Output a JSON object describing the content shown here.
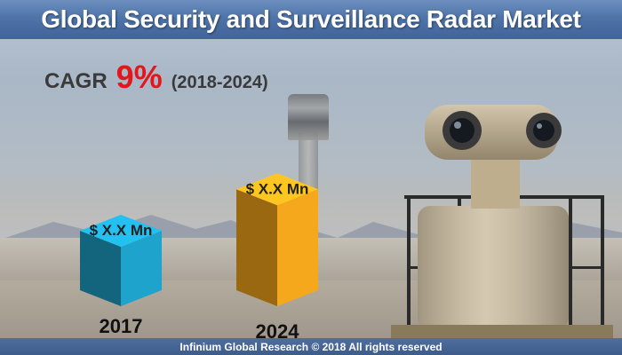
{
  "header": {
    "title": "Global Security and Surveillance Radar Market"
  },
  "cagr": {
    "label": "CAGR",
    "value": "9%",
    "period": "(2018-2024)"
  },
  "footer": {
    "text": "Infinium Global Research © 2018 All rights reserved"
  },
  "colors": {
    "bar_2017": "#1ea3cc",
    "bar_2024": "#f6a81c",
    "cagr_value": "#e3161b",
    "header": "#4e74a8"
  },
  "chart_data": {
    "type": "bar",
    "title": "",
    "xlabel": "",
    "ylabel": "",
    "categories": [
      "2017",
      "2024"
    ],
    "values": [
      1,
      1.55
    ],
    "value_labels": [
      "$ X.X Mn",
      "$ X.X Mn"
    ],
    "value_note_units": "relative bar height (actual values not disclosed)",
    "grid": false,
    "legend": "none"
  }
}
